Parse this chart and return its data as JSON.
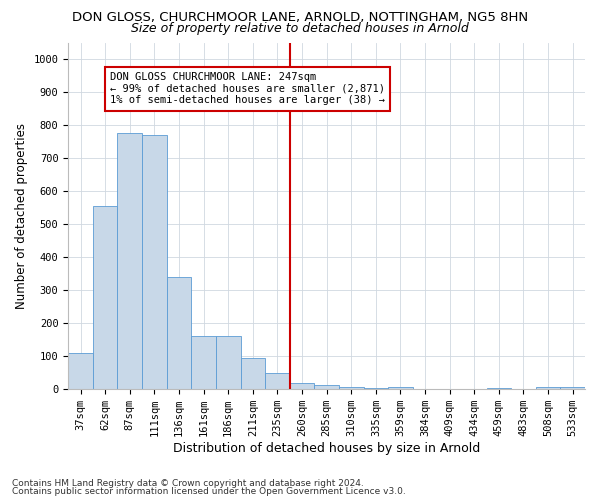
{
  "title1": "DON GLOSS, CHURCHMOOR LANE, ARNOLD, NOTTINGHAM, NG5 8HN",
  "title2": "Size of property relative to detached houses in Arnold",
  "xlabel": "Distribution of detached houses by size in Arnold",
  "ylabel": "Number of detached properties",
  "footnote1": "Contains HM Land Registry data © Crown copyright and database right 2024.",
  "footnote2": "Contains public sector information licensed under the Open Government Licence v3.0.",
  "categories": [
    "37sqm",
    "62sqm",
    "87sqm",
    "111sqm",
    "136sqm",
    "161sqm",
    "186sqm",
    "211sqm",
    "235sqm",
    "260sqm",
    "285sqm",
    "310sqm",
    "335sqm",
    "359sqm",
    "384sqm",
    "409sqm",
    "434sqm",
    "459sqm",
    "483sqm",
    "508sqm",
    "533sqm"
  ],
  "values": [
    110,
    555,
    775,
    770,
    340,
    160,
    160,
    95,
    50,
    18,
    12,
    8,
    3,
    8,
    0,
    0,
    0,
    5,
    0,
    8,
    8
  ],
  "bar_color": "#c8d8e8",
  "bar_edge_color": "#5b9bd5",
  "vline_x_index": 8.5,
  "vline_color": "#cc0000",
  "annotation_line1": "DON GLOSS CHURCHMOOR LANE: 247sqm",
  "annotation_line2": "← 99% of detached houses are smaller (2,871)",
  "annotation_line3": "1% of semi-detached houses are larger (38) →",
  "annotation_box_color": "#cc0000",
  "ylim": [
    0,
    1050
  ],
  "yticks": [
    0,
    100,
    200,
    300,
    400,
    500,
    600,
    700,
    800,
    900,
    1000
  ],
  "bg_color": "#ffffff",
  "grid_color": "#d0d8e0",
  "title1_fontsize": 9.5,
  "title2_fontsize": 9,
  "xlabel_fontsize": 9,
  "ylabel_fontsize": 8.5,
  "tick_fontsize": 7.5,
  "annotation_fontsize": 7.5,
  "footnote_fontsize": 6.5
}
